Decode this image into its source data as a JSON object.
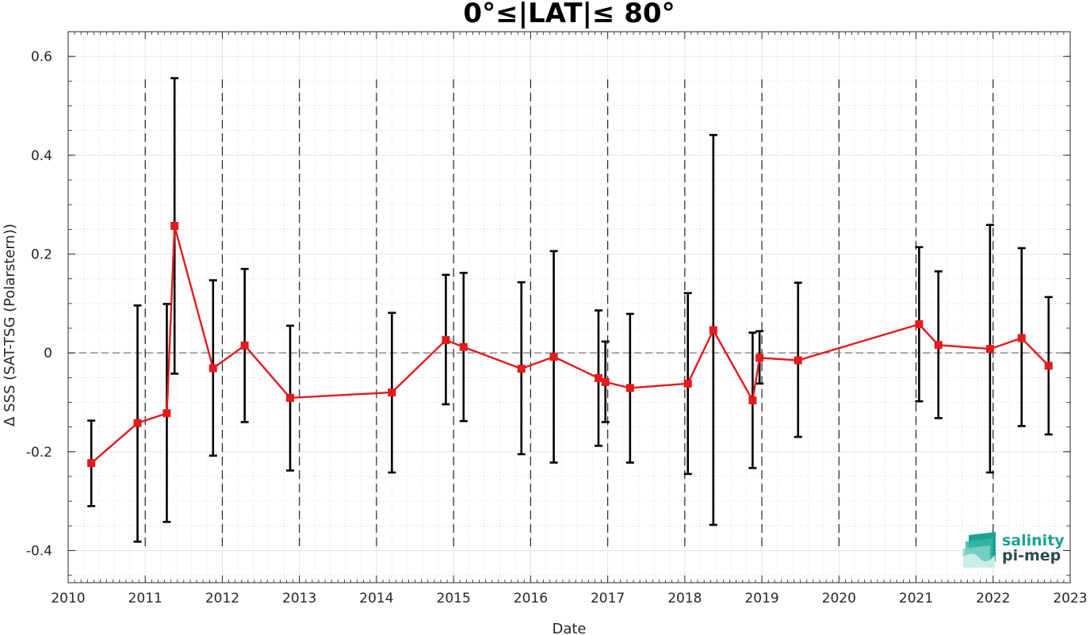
{
  "chart_data": {
    "type": "line",
    "title": "0°≤|LAT|≤ 80°",
    "xlabel": "Date",
    "ylabel": "Δ SSS (SAT-TSG (Polarstern))",
    "xlim": [
      2010.0,
      2023.0
    ],
    "ylim": [
      -0.465,
      0.65
    ],
    "x_ticks": [
      2010,
      2011,
      2012,
      2013,
      2014,
      2015,
      2016,
      2017,
      2018,
      2019,
      2020,
      2021,
      2022,
      2023
    ],
    "x_tick_labels": [
      "2010",
      "2011",
      "2012",
      "2013",
      "2014",
      "2015",
      "2016",
      "2017",
      "2018",
      "2019",
      "2020",
      "2021",
      "2022",
      "2023"
    ],
    "y_ticks": [
      -0.4,
      -0.2,
      0,
      0.2,
      0.4,
      0.6
    ],
    "y_tick_labels": [
      "-0.4",
      "-0.2",
      "0",
      "0.2",
      "0.4",
      "0.6"
    ],
    "year_boundaries": [
      2011,
      2012,
      2013,
      2014,
      2015,
      2016,
      2017,
      2018,
      2019,
      2020,
      2021,
      2022
    ],
    "zero_line": 0,
    "grid": true,
    "series": [
      {
        "color": "#e41a1c",
        "errorbar_color": "#000000",
        "x": [
          2010.3,
          2010.9,
          2011.28,
          2011.38,
          2011.88,
          2012.29,
          2012.88,
          2014.2,
          2014.9,
          2015.13,
          2015.88,
          2016.3,
          2016.88,
          2016.97,
          2017.29,
          2018.04,
          2018.37,
          2018.88,
          2018.97,
          2019.47,
          2021.04,
          2021.29,
          2021.96,
          2022.37,
          2022.72
        ],
        "y": [
          -0.223,
          -0.142,
          -0.122,
          0.257,
          -0.031,
          0.015,
          -0.091,
          -0.08,
          0.026,
          0.012,
          -0.032,
          -0.008,
          -0.051,
          -0.059,
          -0.071,
          -0.062,
          0.046,
          -0.096,
          -0.01,
          -0.015,
          0.058,
          0.016,
          0.008,
          0.03,
          -0.026
        ],
        "err_low": [
          -0.31,
          -0.382,
          -0.342,
          -0.042,
          -0.208,
          -0.14,
          -0.238,
          -0.242,
          -0.104,
          -0.138,
          -0.205,
          -0.222,
          -0.188,
          -0.14,
          -0.222,
          -0.245,
          -0.348,
          -0.233,
          -0.062,
          -0.17,
          -0.098,
          -0.132,
          -0.242,
          -0.148,
          -0.165
        ],
        "err_high": [
          -0.137,
          0.096,
          0.099,
          0.556,
          0.147,
          0.17,
          0.055,
          0.081,
          0.158,
          0.162,
          0.143,
          0.206,
          0.086,
          0.023,
          0.079,
          0.121,
          0.441,
          0.041,
          0.044,
          0.142,
          0.214,
          0.165,
          0.259,
          0.212,
          0.113
        ]
      }
    ]
  },
  "logo": {
    "line1": "salinity",
    "line2": "pi-mep",
    "color_primary": "#1aa393",
    "color_secondary": "#2f4a4f"
  }
}
